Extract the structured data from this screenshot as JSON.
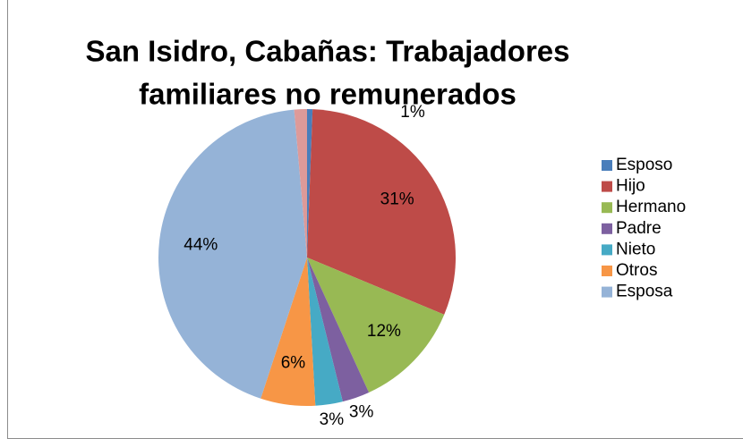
{
  "chart_data": {
    "type": "pie",
    "title": [
      "San Isidro, Cabañas: Trabajadores",
      "familiares no remunerados"
    ],
    "categories": [
      "Esposo",
      "Hijo",
      "Hermano",
      "Padre",
      "Nieto",
      "Otros",
      "Esposa",
      null
    ],
    "values": [
      0.6,
      31,
      12,
      3,
      3,
      6,
      44,
      1.4
    ],
    "value_labels": [
      "1%",
      "31%",
      "12%",
      "3%",
      "3%",
      "6%",
      "44%",
      null
    ],
    "colors": [
      "#4a7ebb",
      "#be4b48",
      "#98b954",
      "#7d60a0",
      "#46aac5",
      "#f79646",
      "#95b3d7",
      "#dd9a99"
    ],
    "legend": "right"
  }
}
